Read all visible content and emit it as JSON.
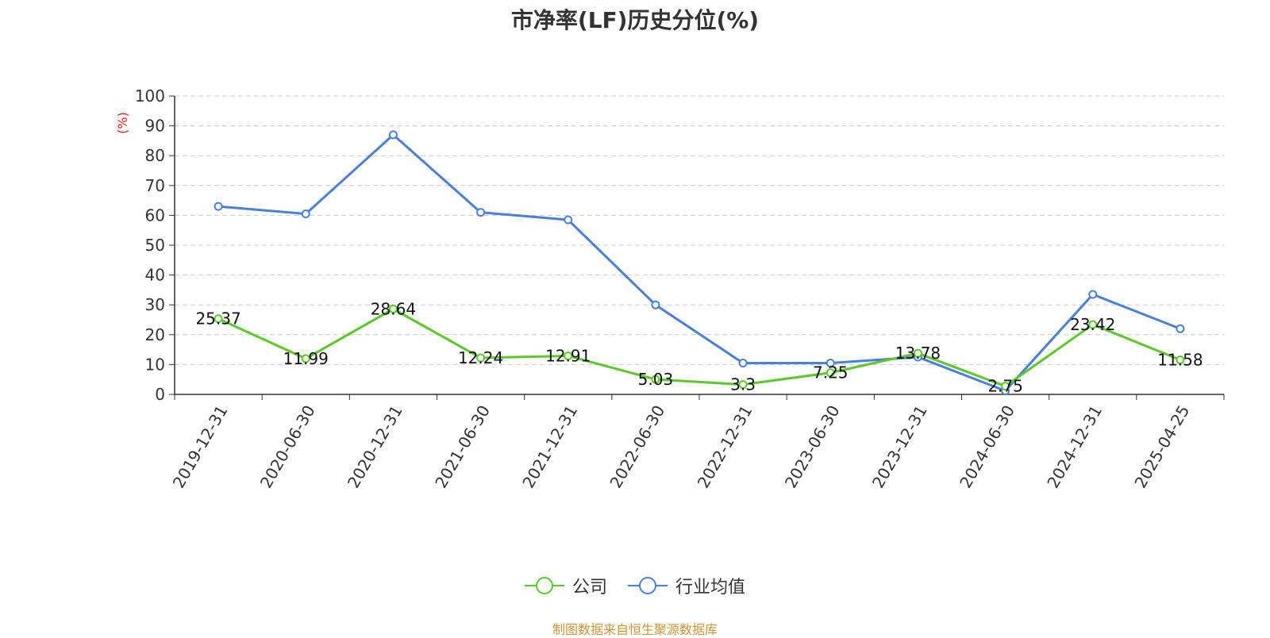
{
  "chart_data": {
    "type": "line",
    "title": "市净率(LF)历史分位(%)",
    "ylabel": "(%)",
    "ylim": [
      0,
      100
    ],
    "yticks": [
      0,
      10,
      20,
      30,
      40,
      50,
      60,
      70,
      80,
      90,
      100
    ],
    "grid": true,
    "legend_position": "bottom-center",
    "categories": [
      "2019-12-31",
      "2020-06-30",
      "2020-12-31",
      "2021-06-30",
      "2021-12-31",
      "2022-06-30",
      "2022-12-31",
      "2023-06-30",
      "2023-12-31",
      "2024-06-30",
      "2024-12-31",
      "2025-04-25"
    ],
    "series": [
      {
        "name": "公司",
        "color": "#5ec72c",
        "values": [
          25.37,
          11.99,
          28.64,
          12.24,
          12.91,
          5.03,
          3.3,
          7.25,
          13.78,
          2.75,
          23.42,
          11.58
        ],
        "labels": [
          "25.37",
          "11.99",
          "28.64",
          "12.24",
          "12.91",
          "5.03",
          "3.3",
          "7.25",
          "13.78",
          "2.75",
          "23.42",
          "11.58"
        ]
      },
      {
        "name": "行业均值",
        "color": "#4a7fdb",
        "values": [
          63,
          60.5,
          87,
          61,
          58.5,
          30,
          10.5,
          10.5,
          12.5,
          1.2,
          33.5,
          22
        ]
      }
    ]
  },
  "source_note": "制图数据来自恒生聚源数据库"
}
